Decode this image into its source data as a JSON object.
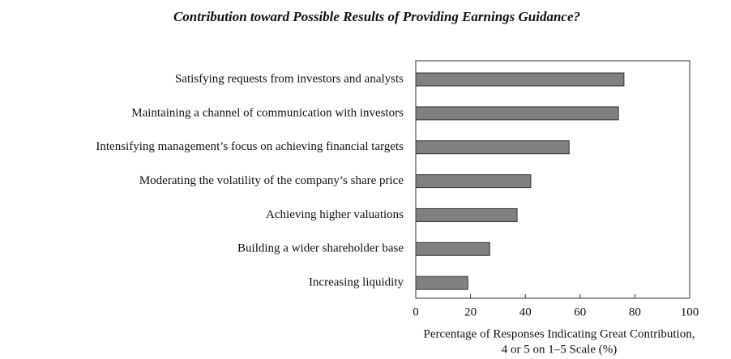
{
  "chart_data": {
    "type": "bar",
    "orientation": "horizontal",
    "title": "Contribution toward Possible Results of Providing Earnings Guidance?",
    "categories": [
      "Satisfying requests from investors and analysts",
      "Maintaining a channel of communication with investors",
      "Intensifying management’s focus on achieving financial targets",
      "Moderating the volatility of the company’s share price",
      "Achieving higher valuations",
      "Building a wider shareholder base",
      "Increasing liquidity"
    ],
    "values": [
      76,
      74,
      56,
      42,
      37,
      27,
      19
    ],
    "color": "#808080",
    "xlim": [
      0,
      100
    ],
    "xticks": [
      0,
      20,
      40,
      60,
      80,
      100
    ],
    "xlabel": [
      "Percentage of Responses Indicating Great Contribution,",
      "4 or 5 on 1–5 Scale (%)"
    ]
  }
}
